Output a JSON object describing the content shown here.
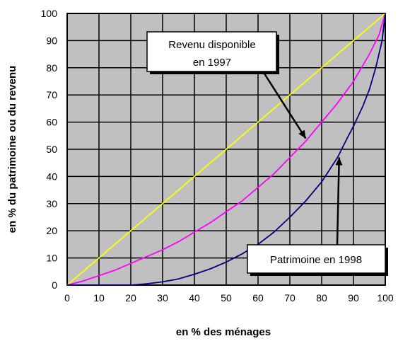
{
  "chart_data": {
    "type": "line",
    "title": "",
    "xlabel": "en % des ménages",
    "ylabel": "en % du patrimoine ou du revenu",
    "xlim": [
      0,
      100
    ],
    "ylim": [
      0,
      100
    ],
    "x_ticks": [
      0,
      10,
      20,
      30,
      40,
      50,
      60,
      70,
      80,
      90,
      100
    ],
    "y_ticks": [
      0,
      10,
      20,
      30,
      40,
      50,
      60,
      70,
      80,
      90,
      100
    ],
    "grid": true,
    "plot_background": "#c0c0c0",
    "grid_color": "#000000",
    "series": [
      {
        "color": "#ffff00",
        "x": [
          0,
          100
        ],
        "y": [
          0,
          100
        ]
      },
      {
        "color": "#ff00ff",
        "x": [
          0,
          5,
          10,
          15,
          20,
          25,
          30,
          35,
          40,
          45,
          50,
          55,
          60,
          65,
          70,
          75,
          80,
          85,
          90,
          95,
          98,
          100
        ],
        "y": [
          0,
          1.5,
          3.5,
          5.5,
          8,
          10.5,
          13,
          16,
          19.5,
          23,
          27,
          31,
          36,
          41,
          47,
          53,
          60,
          67,
          75,
          85,
          92,
          100
        ]
      },
      {
        "color": "#000080",
        "x": [
          0,
          10,
          20,
          25,
          30,
          35,
          40,
          45,
          50,
          55,
          60,
          65,
          70,
          75,
          80,
          85,
          88,
          90,
          93,
          95,
          97,
          99,
          100
        ],
        "y": [
          0,
          0,
          0,
          0.5,
          1.2,
          2.3,
          4,
          6,
          8.5,
          11.5,
          15,
          19.5,
          25,
          31,
          38,
          47,
          54,
          58.5,
          66,
          72,
          80,
          90,
          100
        ]
      }
    ],
    "annotations": [
      {
        "lines": [
          "Revenu disponible",
          "en 1997"
        ],
        "arrow_to": [
          75,
          54
        ]
      },
      {
        "lines": [
          "Patrimoine en 1998"
        ],
        "arrow_to": [
          85.5,
          47
        ]
      }
    ]
  }
}
